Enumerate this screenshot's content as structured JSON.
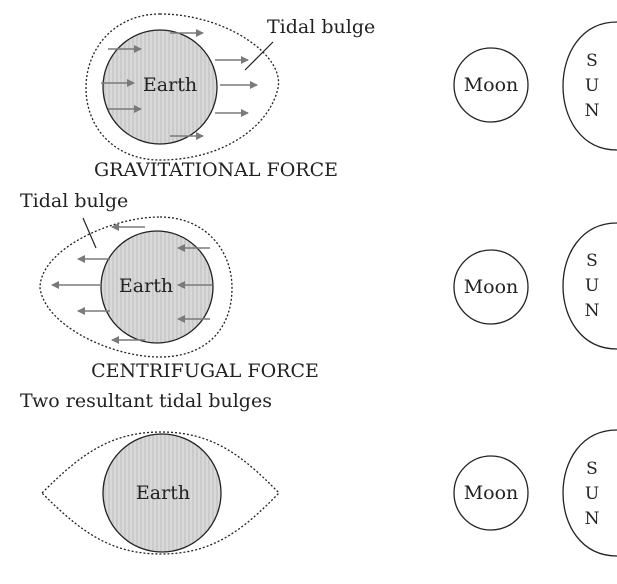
{
  "panels": [
    {
      "id": "gravitational",
      "earth_label": "Earth",
      "moon_label": "Moon",
      "sun_letters": [
        "S",
        "U",
        "N"
      ],
      "bulge_label": "Tidal bulge",
      "caption": "GRAVITATIONAL FORCE"
    },
    {
      "id": "centrifugal",
      "earth_label": "Earth",
      "moon_label": "Moon",
      "sun_letters": [
        "S",
        "U",
        "N"
      ],
      "bulge_label": "Tidal bulge",
      "caption": "CENTRIFUGAL FORCE"
    },
    {
      "id": "resultant",
      "earth_label": "Earth",
      "moon_label": "Moon",
      "sun_letters": [
        "S",
        "U",
        "N"
      ],
      "heading": "Two resultant tidal bulges"
    }
  ],
  "colors": {
    "earth_fill": "#d9d9d9",
    "earth_stripe": "#bfbfbf",
    "outline": "#222222",
    "arrow": "#7a7a7a"
  }
}
